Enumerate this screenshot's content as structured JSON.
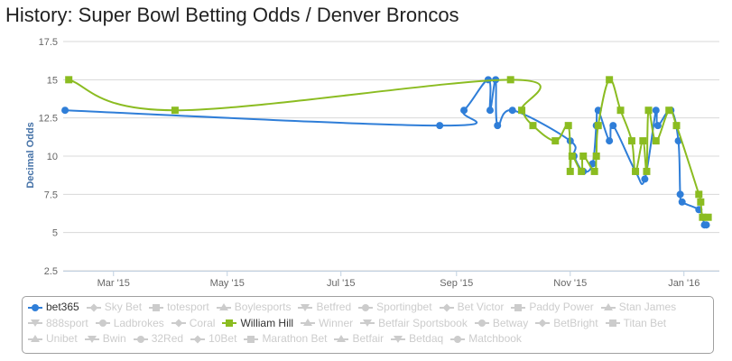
{
  "title": "History: Super Bowl Betting Odds / Denver Broncos",
  "chart_data": {
    "type": "line",
    "title": "History: Super Bowl Betting Odds / Denver Broncos",
    "xlabel": "",
    "ylabel": "Decimal Odds",
    "ylim": [
      2.5,
      17.5
    ],
    "yticks": [
      2.5,
      5,
      7.5,
      10,
      12.5,
      15,
      17.5
    ],
    "xlim": [
      "2015-02-02",
      "2016-01-20"
    ],
    "xticks": [
      {
        "label": "Mar '15",
        "date": "2015-03-01"
      },
      {
        "label": "May '15",
        "date": "2015-05-01"
      },
      {
        "label": "Jul '15",
        "date": "2015-07-01"
      },
      {
        "label": "Sep '15",
        "date": "2015-09-01"
      },
      {
        "label": "Nov '15",
        "date": "2015-11-01"
      },
      {
        "label": "Jan '16",
        "date": "2016-01-01"
      }
    ],
    "series": [
      {
        "name": "bet365",
        "color": "#2F7ED8",
        "marker": "circle",
        "points": [
          [
            "2015-02-03",
            13
          ],
          [
            "2015-08-23",
            12
          ],
          [
            "2015-09-05",
            13
          ],
          [
            "2015-09-18",
            15
          ],
          [
            "2015-09-19",
            13
          ],
          [
            "2015-09-22",
            15
          ],
          [
            "2015-09-23",
            12
          ],
          [
            "2015-10-01",
            13
          ],
          [
            "2015-11-01",
            11
          ],
          [
            "2015-11-03",
            10
          ],
          [
            "2015-11-08",
            9
          ],
          [
            "2015-11-13",
            9.5
          ],
          [
            "2015-11-15",
            12
          ],
          [
            "2015-11-16",
            13
          ],
          [
            "2015-11-22",
            11
          ],
          [
            "2015-11-24",
            12
          ],
          [
            "2015-12-06",
            9
          ],
          [
            "2015-12-11",
            8.5
          ],
          [
            "2015-12-17",
            13
          ],
          [
            "2015-12-18",
            12
          ],
          [
            "2015-12-25",
            13
          ],
          [
            "2015-12-29",
            11
          ],
          [
            "2015-12-30",
            7.5
          ],
          [
            "2015-12-31",
            7
          ],
          [
            "2016-01-09",
            6.5
          ],
          [
            "2016-01-11",
            6
          ],
          [
            "2016-01-12",
            5.5
          ],
          [
            "2016-01-13",
            5.5
          ]
        ]
      },
      {
        "name": "William Hill",
        "color": "#8BBC21",
        "marker": "square",
        "points": [
          [
            "2015-02-05",
            15
          ],
          [
            "2015-04-03",
            13
          ],
          [
            "2015-09-30",
            15
          ],
          [
            "2015-10-06",
            13
          ],
          [
            "2015-10-12",
            12
          ],
          [
            "2015-10-24",
            11
          ],
          [
            "2015-10-31",
            12
          ],
          [
            "2015-11-01",
            9
          ],
          [
            "2015-11-02",
            10
          ],
          [
            "2015-11-07",
            9
          ],
          [
            "2015-11-08",
            10
          ],
          [
            "2015-11-14",
            9
          ],
          [
            "2015-11-15",
            10
          ],
          [
            "2015-11-16",
            12
          ],
          [
            "2015-11-22",
            15
          ],
          [
            "2015-11-28",
            13
          ],
          [
            "2015-12-04",
            11
          ],
          [
            "2015-12-06",
            9
          ],
          [
            "2015-12-10",
            11
          ],
          [
            "2015-12-12",
            9
          ],
          [
            "2015-12-13",
            13
          ],
          [
            "2015-12-17",
            11
          ],
          [
            "2015-12-24",
            13
          ],
          [
            "2015-12-28",
            12
          ],
          [
            "2016-01-09",
            7.5
          ],
          [
            "2016-01-10",
            7
          ],
          [
            "2016-01-11",
            6
          ],
          [
            "2016-01-14",
            6
          ]
        ]
      }
    ],
    "legend": {
      "placement": "bottom",
      "items": [
        {
          "name": "bet365",
          "active": true,
          "symbol": "circle",
          "color": "#2F7ED8"
        },
        {
          "name": "Sky Bet",
          "active": false,
          "symbol": "diamond"
        },
        {
          "name": "totesport",
          "active": false,
          "symbol": "square"
        },
        {
          "name": "Boylesports",
          "active": false,
          "symbol": "triangle"
        },
        {
          "name": "Betfred",
          "active": false,
          "symbol": "triangle-down"
        },
        {
          "name": "Sportingbet",
          "active": false,
          "symbol": "circle"
        },
        {
          "name": "Bet Victor",
          "active": false,
          "symbol": "diamond"
        },
        {
          "name": "Paddy Power",
          "active": false,
          "symbol": "square"
        },
        {
          "name": "Stan James",
          "active": false,
          "symbol": "triangle"
        },
        {
          "name": "888sport",
          "active": false,
          "symbol": "triangle-down"
        },
        {
          "name": "Ladbrokes",
          "active": false,
          "symbol": "circle"
        },
        {
          "name": "Coral",
          "active": false,
          "symbol": "diamond"
        },
        {
          "name": "William Hill",
          "active": true,
          "symbol": "square",
          "color": "#8BBC21"
        },
        {
          "name": "Winner",
          "active": false,
          "symbol": "triangle"
        },
        {
          "name": "Betfair Sportsbook",
          "active": false,
          "symbol": "triangle-down"
        },
        {
          "name": "Betway",
          "active": false,
          "symbol": "circle"
        },
        {
          "name": "BetBright",
          "active": false,
          "symbol": "diamond"
        },
        {
          "name": "Titan Bet",
          "active": false,
          "symbol": "square"
        },
        {
          "name": "Unibet",
          "active": false,
          "symbol": "triangle"
        },
        {
          "name": "Bwin",
          "active": false,
          "symbol": "triangle-down"
        },
        {
          "name": "32Red",
          "active": false,
          "symbol": "circle"
        },
        {
          "name": "10Bet",
          "active": false,
          "symbol": "diamond"
        },
        {
          "name": "Marathon Bet",
          "active": false,
          "symbol": "square"
        },
        {
          "name": "Betfair",
          "active": false,
          "symbol": "triangle"
        },
        {
          "name": "Betdaq",
          "active": false,
          "symbol": "triangle-down"
        },
        {
          "name": "Matchbook",
          "active": false,
          "symbol": "circle"
        }
      ]
    }
  }
}
